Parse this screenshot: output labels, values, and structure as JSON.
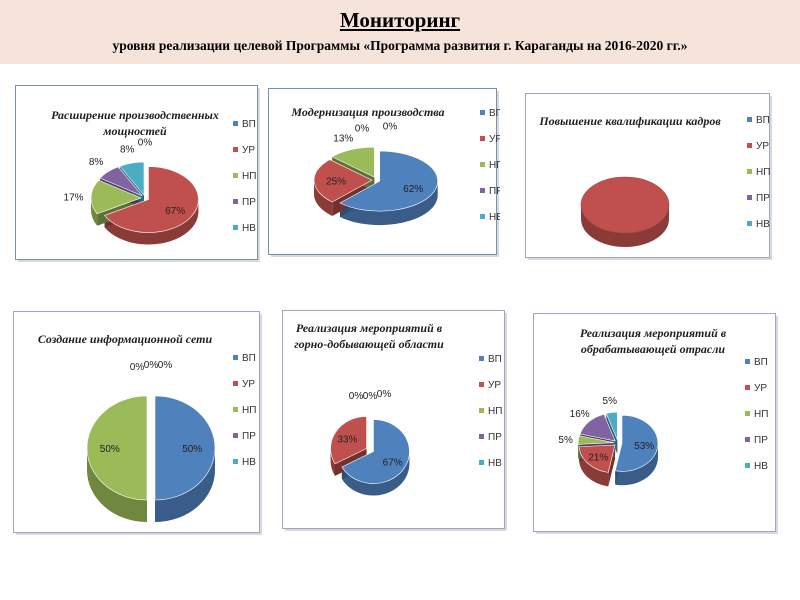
{
  "header": {
    "title": "Мониторинг",
    "subtitle": "уровня реализации целевой Программы «Программа развития г. Караганды на 2016-2020 гг.»"
  },
  "chart_data": [
    {
      "type": "pie",
      "title": [
        "Расширение производственных",
        "мощностей"
      ],
      "categories": [
        "ВП",
        "УР",
        "НП",
        "ПР",
        "НВ"
      ],
      "values": [
        0,
        67,
        17,
        8,
        8
      ],
      "labels": [
        "0%",
        "67%",
        "17%",
        "8%",
        "8%"
      ],
      "legend": "right"
    },
    {
      "type": "pie",
      "title": [
        "Модернизация производства"
      ],
      "categories": [
        "ВП",
        "УР",
        "НП",
        "ПР",
        "НВ"
      ],
      "values": [
        62,
        25,
        13,
        0,
        0
      ],
      "labels": [
        "62%",
        "25%",
        "13%",
        "0%",
        "0%"
      ],
      "legend": "right"
    },
    {
      "type": "pie",
      "title": [
        "Повышение квалификации кадров"
      ],
      "categories": [
        "ВП",
        "УР",
        "НП",
        "ПР",
        "НВ"
      ],
      "values": [
        0,
        100,
        0,
        0,
        0
      ],
      "labels": [
        "",
        "",
        "",
        "",
        ""
      ],
      "legend": "right"
    },
    {
      "type": "pie",
      "title": [
        "Создание информационной сети"
      ],
      "categories": [
        "ВП",
        "УР",
        "НП",
        "ПР",
        "НВ"
      ],
      "values": [
        50,
        0,
        50,
        0,
        0
      ],
      "labels": [
        "50%",
        "0%",
        "50%",
        "0%",
        "0%"
      ],
      "legend": "right"
    },
    {
      "type": "pie",
      "title": [
        "Реализация мероприятий в",
        "горно-добывающей области"
      ],
      "categories": [
        "ВП",
        "УР",
        "НП",
        "ПР",
        "НВ"
      ],
      "values": [
        67,
        33,
        0,
        0,
        0
      ],
      "labels": [
        "67%",
        "33%",
        "0%",
        "0%",
        "0%"
      ],
      "legend": "right"
    },
    {
      "type": "pie",
      "title": [
        "Реализация мероприятий в",
        "обрабатывающей отрасли"
      ],
      "categories": [
        "ВП",
        "УР",
        "НП",
        "ПР",
        "НВ"
      ],
      "values": [
        53,
        21,
        5,
        16,
        5
      ],
      "labels": [
        "53%",
        "21%",
        "5%",
        "16%",
        "5%"
      ],
      "legend": "right"
    }
  ],
  "colors": {
    "ВП": "#4f81bd",
    "УР": "#c0504d",
    "НП": "#9bbb59",
    "ПР": "#8064a2",
    "НВ": "#4bacc6"
  }
}
